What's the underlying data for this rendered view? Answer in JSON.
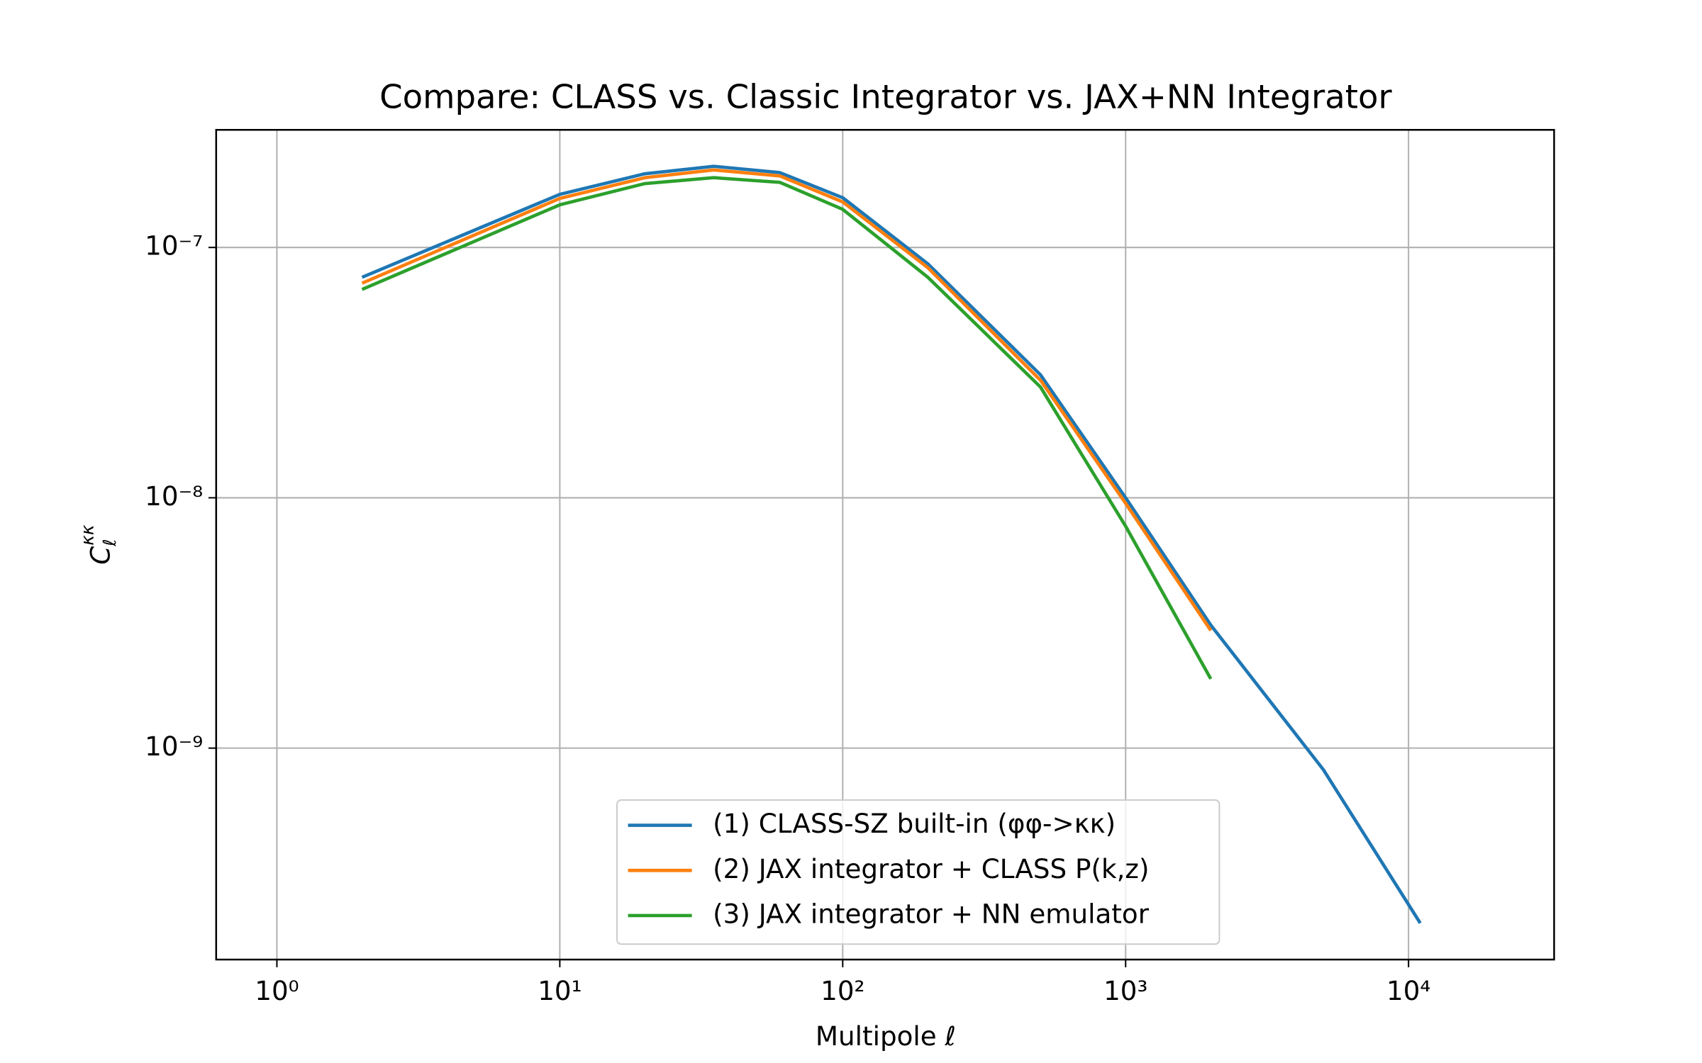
{
  "chart_data": {
    "type": "line",
    "title": "Compare: CLASS vs. Classic Integrator vs. JAX+NN Integrator",
    "xlabel": "Multipole ℓ",
    "ylabel": {
      "base": "C",
      "sub": "ℓ",
      "sup": "κκ"
    },
    "xscale": "log",
    "yscale": "log",
    "grid": true,
    "legend": "lower center",
    "xlim": [
      0.61,
      32700
    ],
    "ylim": [
      1.43e-10,
      2.95e-07
    ],
    "xticks": [
      {
        "value": 1,
        "label": "10⁰"
      },
      {
        "value": 10,
        "label": "10¹"
      },
      {
        "value": 100,
        "label": "10²"
      },
      {
        "value": 1000,
        "label": "10³"
      },
      {
        "value": 10000,
        "label": "10⁴"
      }
    ],
    "yticks": [
      {
        "value": 1e-09,
        "label": "10⁻⁹"
      },
      {
        "value": 1e-08,
        "label": "10⁻⁸"
      },
      {
        "value": 1e-07,
        "label": "10⁻⁷"
      }
    ],
    "series": [
      {
        "name": "(1) CLASS-SZ built-in (φφ->κκ)",
        "color": "#1f77b4",
        "x": [
          2,
          10,
          20,
          35,
          60,
          100,
          200,
          500,
          1000,
          2000,
          5000,
          11000
        ],
        "values": [
          7.6e-08,
          1.63e-07,
          1.97e-07,
          2.11e-07,
          1.99e-07,
          1.58e-07,
          8.6e-08,
          3.1e-08,
          1e-08,
          3.1e-09,
          8.2e-10,
          2e-10
        ]
      },
      {
        "name": "(2) JAX integrator + CLASS P(k,z)",
        "color": "#ff7f0e",
        "x": [
          2,
          10,
          20,
          35,
          60,
          100,
          200,
          500,
          1000,
          2000
        ],
        "values": [
          7.2e-08,
          1.57e-07,
          1.9e-07,
          2.04e-07,
          1.93e-07,
          1.52e-07,
          8.3e-08,
          2.95e-08,
          9.5e-09,
          2.95e-09
        ]
      },
      {
        "name": "(3) JAX integrator + NN emulator",
        "color": "#2ca02c",
        "x": [
          2,
          10,
          20,
          35,
          60,
          100,
          200,
          500,
          1000,
          2000
        ],
        "values": [
          6.8e-08,
          1.48e-07,
          1.8e-07,
          1.9e-07,
          1.82e-07,
          1.42e-07,
          7.6e-08,
          2.77e-08,
          7.7e-09,
          1.89e-09
        ]
      }
    ]
  }
}
